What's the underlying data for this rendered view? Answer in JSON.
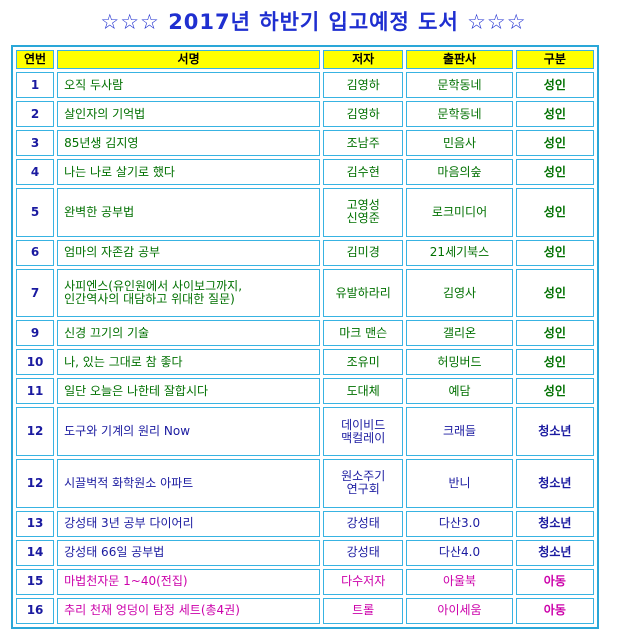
{
  "title": "☆☆☆ 2017년 하반기 입고예정 도서 ☆☆☆",
  "columns": [
    "연번",
    "서명",
    "저자",
    "출판사",
    "구분"
  ],
  "rows": [
    {
      "num": "1",
      "title": "오직 두사람",
      "author": "김영하",
      "publisher": "문학동네",
      "category": "성인",
      "type": "adult"
    },
    {
      "num": "2",
      "title": "살인자의 기억법",
      "author": "김영하",
      "publisher": "문학동네",
      "category": "성인",
      "type": "adult"
    },
    {
      "num": "3",
      "title": "85년생 김지영",
      "author": "조남주",
      "publisher": "민음사",
      "category": "성인",
      "type": "adult"
    },
    {
      "num": "4",
      "title": "나는 나로 살기로 했다",
      "author": "김수현",
      "publisher": "마음의숲",
      "category": "성인",
      "type": "adult"
    },
    {
      "num": "5",
      "title": "완벽한 공부법",
      "author": "고영성\n신영준",
      "publisher": "로크미디어",
      "category": "성인",
      "type": "adult"
    },
    {
      "num": "6",
      "title": "엄마의 자존감 공부",
      "author": "김미경",
      "publisher": "21세기북스",
      "category": "성인",
      "type": "adult"
    },
    {
      "num": "7",
      "title": "사피엔스(유인원에서 사이보그까지,\n인간역사의 대담하고 위대한 질문)",
      "author": "유발하라리",
      "publisher": "김영사",
      "category": "성인",
      "type": "adult"
    },
    {
      "num": "9",
      "title": "신경 끄기의 기술",
      "author": "마크 맨슨",
      "publisher": "갤리온",
      "category": "성인",
      "type": "adult"
    },
    {
      "num": "10",
      "title": "나, 있는 그대로 참 좋다",
      "author": "조유미",
      "publisher": "허밍버드",
      "category": "성인",
      "type": "adult"
    },
    {
      "num": "11",
      "title": "일단 오늘은 나한테 잘합시다",
      "author": "도대체",
      "publisher": "예담",
      "category": "성인",
      "type": "adult"
    },
    {
      "num": "12",
      "title": "도구와 기계의 원리 Now",
      "author": "데이비드\n맥컬레이",
      "publisher": "크래들",
      "category": "청소년",
      "type": "teen"
    },
    {
      "num": "12",
      "title": "시끌벅적 화학원소 아파트",
      "author": "원소주기\n연구회",
      "publisher": "반니",
      "category": "청소년",
      "type": "teen"
    },
    {
      "num": "13",
      "title": "강성태 3년 공부 다이어리",
      "author": "강성태",
      "publisher": "다산3.0",
      "category": "청소년",
      "type": "teen"
    },
    {
      "num": "14",
      "title": "강성태 66일 공부법",
      "author": "강성태",
      "publisher": "다산4.0",
      "category": "청소년",
      "type": "teen"
    },
    {
      "num": "15",
      "title": "마법천자문 1~40(전집)",
      "author": "다수저자",
      "publisher": "아울북",
      "category": "아동",
      "type": "child"
    },
    {
      "num": "16",
      "title": "추리 천재 엉덩이 탐정 세트(총4권)",
      "author": "트롤",
      "publisher": "아이세움",
      "category": "아동",
      "type": "child"
    }
  ]
}
